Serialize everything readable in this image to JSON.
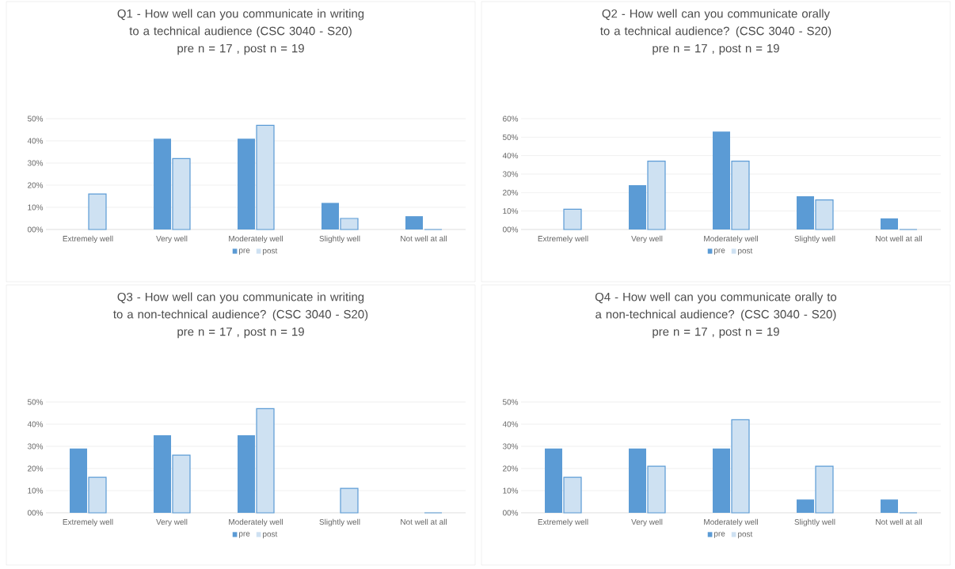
{
  "chart_data": [
    {
      "type": "bar",
      "title": "Q1 - How well can you communicate in writing to a technical audience (CSC 3040 - S20)",
      "subtitle": "pre n = 17 , post n = 19",
      "categories": [
        "Extremely well",
        "Very well",
        "Moderately well",
        "Slightly well",
        "Not well at all"
      ],
      "series": [
        {
          "name": "pre",
          "color": "#5b9bd5",
          "values": [
            0,
            41,
            41,
            12,
            6
          ]
        },
        {
          "name": "post",
          "color": "#5b9bd5",
          "values": [
            16,
            32,
            47,
            5,
            0
          ]
        }
      ],
      "ylim": [
        0,
        50
      ],
      "yticks": [
        {
          "value": 0,
          "label": "00%"
        },
        {
          "value": 10,
          "label": "10%"
        },
        {
          "value": 20,
          "label": "20%"
        },
        {
          "value": 30,
          "label": "30%"
        },
        {
          "value": 40,
          "label": "40%"
        },
        {
          "value": 50,
          "label": "50%"
        }
      ],
      "grid": "y",
      "legend": "bottom"
    },
    {
      "type": "bar",
      "title": "Q2 - How well can you communicate orally to a technical audience? (CSC 3040 - S20)",
      "subtitle": "pre n = 17 , post n = 19",
      "categories": [
        "Extremely well",
        "Very well",
        "Moderately well",
        "Slightly well",
        "Not well at all"
      ],
      "series": [
        {
          "name": "pre",
          "color": "#5b9bd5",
          "values": [
            0,
            24,
            53,
            18,
            6
          ]
        },
        {
          "name": "post",
          "color": "#5b9bd5",
          "values": [
            11,
            37,
            37,
            16,
            0
          ]
        }
      ],
      "ylim": [
        0,
        60
      ],
      "yticks": [
        {
          "value": 0,
          "label": "00%"
        },
        {
          "value": 10,
          "label": "10%"
        },
        {
          "value": 20,
          "label": "20%"
        },
        {
          "value": 30,
          "label": "30%"
        },
        {
          "value": 40,
          "label": "40%"
        },
        {
          "value": 50,
          "label": "50%"
        },
        {
          "value": 60,
          "label": "60%"
        }
      ],
      "grid": "y",
      "legend": "bottom"
    },
    {
      "type": "bar",
      "title": "Q3 - How well can you communicate in writing to a non-technical audience? (CSC 3040 - S20)",
      "subtitle": "pre n = 17 , post n = 19",
      "categories": [
        "Extremely well",
        "Very well",
        "Moderately well",
        "Slightly well",
        "Not well at all"
      ],
      "series": [
        {
          "name": "pre",
          "color": "#5b9bd5",
          "values": [
            29,
            35,
            35,
            0,
            0
          ]
        },
        {
          "name": "post",
          "color": "#5b9bd5",
          "values": [
            16,
            26,
            47,
            11,
            0
          ]
        }
      ],
      "ylim": [
        0,
        50
      ],
      "yticks": [
        {
          "value": 0,
          "label": "00%"
        },
        {
          "value": 10,
          "label": "10%"
        },
        {
          "value": 20,
          "label": "20%"
        },
        {
          "value": 30,
          "label": "30%"
        },
        {
          "value": 40,
          "label": "40%"
        },
        {
          "value": 50,
          "label": "50%"
        }
      ],
      "grid": "y",
      "legend": "bottom"
    },
    {
      "type": "bar",
      "title": "Q4 - How well can you communicate orally to a non-technical audience? (CSC 3040 - S20)",
      "subtitle": "pre n = 17 , post n = 19",
      "categories": [
        "Extremely well",
        "Very well",
        "Moderately well",
        "Slightly well",
        "Not well at all"
      ],
      "series": [
        {
          "name": "pre",
          "color": "#5b9bd5",
          "values": [
            29,
            29,
            29,
            6,
            6
          ]
        },
        {
          "name": "post",
          "color": "#5b9bd5",
          "values": [
            16,
            21,
            42,
            21,
            0
          ]
        }
      ],
      "ylim": [
        0,
        50
      ],
      "yticks": [
        {
          "value": 0,
          "label": "00%"
        },
        {
          "value": 10,
          "label": "10%"
        },
        {
          "value": 20,
          "label": "20%"
        },
        {
          "value": 30,
          "label": "30%"
        },
        {
          "value": 40,
          "label": "40%"
        },
        {
          "value": 50,
          "label": "50%"
        }
      ],
      "grid": "y",
      "legend": "bottom"
    }
  ]
}
